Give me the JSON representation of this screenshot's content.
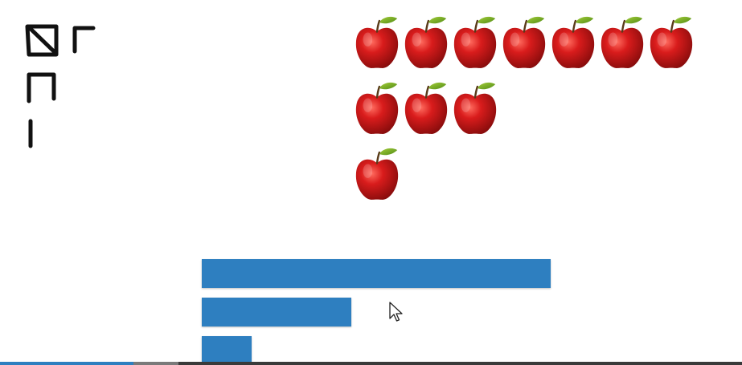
{
  "apples": {
    "rows": [
      7,
      3,
      1
    ],
    "total": 11,
    "icon": "apple-icon"
  },
  "bars": {
    "values": [
      7,
      3,
      1
    ],
    "max": 7,
    "color": "#2e7fc0"
  },
  "video_progress": {
    "played_fraction": 0.18,
    "buffered_fraction": 0.24
  },
  "colors": {
    "bar": "#2e7fc0",
    "apple": "#c8141a",
    "leaf": "#6a9e1f"
  }
}
